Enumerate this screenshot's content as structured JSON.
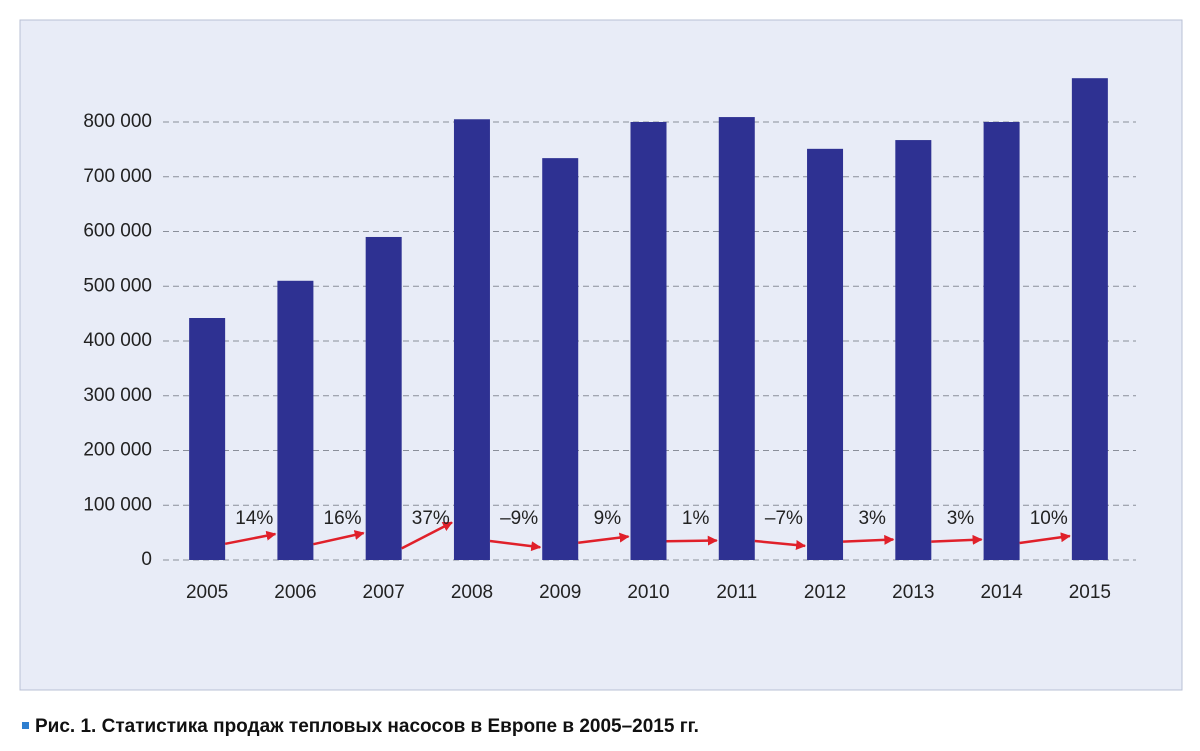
{
  "chart_data": {
    "type": "bar",
    "caption": "Рис. 1. Статистика продаж тепловых насосов в Европе в 2005–2015 гг.",
    "categories": [
      "2005",
      "2006",
      "2007",
      "2008",
      "2009",
      "2010",
      "2011",
      "2012",
      "2013",
      "2014",
      "2015"
    ],
    "values": [
      442000,
      510000,
      590000,
      805000,
      734000,
      800000,
      809000,
      751000,
      767000,
      800000,
      880000
    ],
    "color": "#2e3192",
    "growth": [
      14,
      16,
      37,
      -9,
      9,
      1,
      -7,
      3,
      3,
      10
    ],
    "growth_labels": [
      "14%",
      "16%",
      "37%",
      "–9%",
      "9%",
      "1%",
      "–7%",
      "3%",
      "3%",
      "10%"
    ],
    "growth_color": "#e0202a",
    "ylim": [
      0,
      900000
    ],
    "yticks": [
      0,
      {
        "value": 100000,
        "label": "100 000"
      },
      {
        "value": 200000,
        "label": "200 000"
      },
      {
        "value": 300000,
        "label": "300 000"
      },
      {
        "value": 400000,
        "label": "400 000"
      },
      {
        "value": 500000,
        "label": "500 000"
      },
      {
        "value": 600000,
        "label": "600 000"
      },
      {
        "value": 700000,
        "label": "700 000"
      },
      {
        "value": 800000,
        "label": "800 000"
      }
    ],
    "grid": true
  }
}
